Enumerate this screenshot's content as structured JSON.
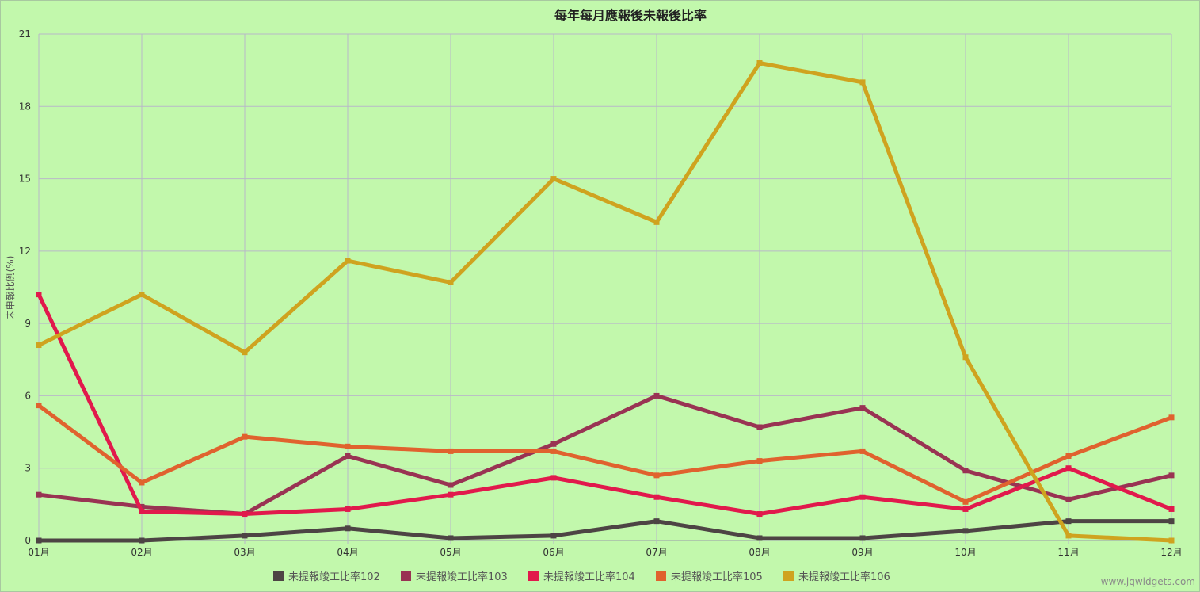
{
  "chart_data": {
    "type": "line",
    "title": "每年每月應報後未報後比率",
    "xlabel": "",
    "ylabel": "未申報比例(%)",
    "categories": [
      "01月",
      "02月",
      "03月",
      "04月",
      "05月",
      "06月",
      "07月",
      "08月",
      "09月",
      "10月",
      "11月",
      "12月"
    ],
    "ylim": [
      0,
      21
    ],
    "yticks": [
      "0",
      "3",
      "6",
      "9",
      "12",
      "15",
      "18",
      "21"
    ],
    "grid": true,
    "legend_position": "bottom",
    "series": [
      {
        "name": "未提報竣工比率102",
        "color": "#4d4444",
        "values": [
          0.0,
          0.0,
          0.2,
          0.5,
          0.1,
          0.2,
          0.8,
          0.1,
          0.1,
          0.4,
          0.8,
          0.8
        ]
      },
      {
        "name": "未提報竣工比率103",
        "color": "#993353",
        "values": [
          1.9,
          1.4,
          1.1,
          3.5,
          2.3,
          4.0,
          6.0,
          4.7,
          5.5,
          2.9,
          1.7,
          2.7
        ]
      },
      {
        "name": "未提報竣工比率104",
        "color": "#e1194c",
        "values": [
          10.2,
          1.2,
          1.1,
          1.3,
          1.9,
          2.6,
          1.8,
          1.1,
          1.8,
          1.3,
          3.0,
          1.3
        ]
      },
      {
        "name": "未提報竣工比率105",
        "color": "#e0622e",
        "values": [
          5.6,
          2.4,
          4.3,
          3.9,
          3.7,
          3.7,
          2.7,
          3.3,
          3.7,
          1.6,
          3.5,
          5.1
        ]
      },
      {
        "name": "未提報竣工比率106",
        "color": "#cfa31f",
        "values": [
          8.1,
          10.2,
          7.8,
          11.6,
          10.7,
          15.0,
          13.2,
          19.8,
          19.0,
          7.6,
          0.2,
          0.0
        ]
      }
    ]
  },
  "watermark": "www.jqwidgets.com",
  "colors": {
    "background": "#c2f8ac",
    "grid": "#b8b8c8"
  }
}
